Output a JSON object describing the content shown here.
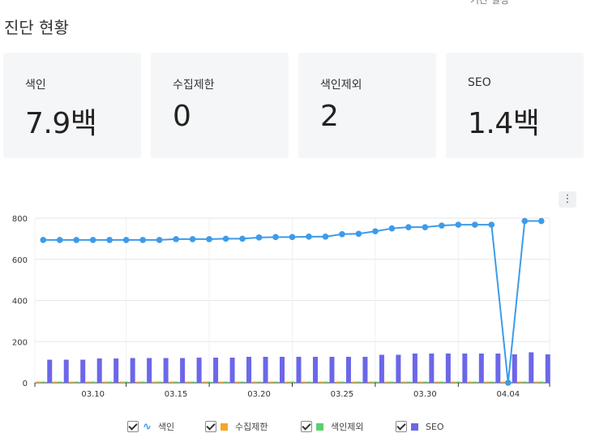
{
  "top_cut_text": "기간 설정",
  "section_title": "진단 현황",
  "cards": [
    {
      "label": "색인",
      "value": "7.9백"
    },
    {
      "label": "수집제한",
      "value": "0"
    },
    {
      "label": "색인제외",
      "value": "2"
    },
    {
      "label": "SEO",
      "value": "1.4백"
    }
  ],
  "menu_icon": "⋮",
  "chart_data": {
    "type": "bar",
    "title": "",
    "xlabel": "",
    "ylabel": "",
    "ylim": [
      0,
      800
    ],
    "y_ticks": [
      0,
      200,
      400,
      600,
      800
    ],
    "x_tick_labels": [
      "03.10",
      "03.15",
      "03.20",
      "03.25",
      "03.30",
      "04.04"
    ],
    "x": [
      "03.07",
      "03.08",
      "03.09",
      "03.10",
      "03.11",
      "03.12",
      "03.13",
      "03.14",
      "03.15",
      "03.16",
      "03.17",
      "03.18",
      "03.19",
      "03.20",
      "03.21",
      "03.22",
      "03.23",
      "03.24",
      "03.25",
      "03.26",
      "03.27",
      "03.28",
      "03.29",
      "03.30",
      "03.31",
      "04.01",
      "04.02",
      "04.03",
      "04.04",
      "04.05",
      "04.06"
    ],
    "grid": true,
    "legend_position": "bottom",
    "series": [
      {
        "name": "색인",
        "type": "line",
        "color": "#3d9be9",
        "values": [
          694,
          694,
          694,
          694,
          694,
          694,
          694,
          694,
          698,
          698,
          698,
          700,
          700,
          706,
          708,
          708,
          710,
          710,
          722,
          724,
          736,
          750,
          756,
          756,
          764,
          768,
          768,
          768,
          0,
          786,
          786
        ]
      },
      {
        "name": "수집제한",
        "type": "bar",
        "color": "#f5a623",
        "values": [
          0,
          0,
          0,
          0,
          0,
          0,
          0,
          0,
          0,
          0,
          0,
          0,
          0,
          0,
          0,
          0,
          0,
          0,
          0,
          0,
          0,
          0,
          0,
          0,
          0,
          0,
          0,
          0,
          0,
          0,
          0
        ]
      },
      {
        "name": "색인제외",
        "type": "bar",
        "color": "#5ccf6f",
        "values": [
          2,
          2,
          2,
          2,
          2,
          2,
          2,
          2,
          2,
          2,
          2,
          2,
          2,
          2,
          2,
          2,
          2,
          2,
          2,
          2,
          2,
          2,
          2,
          2,
          2,
          2,
          2,
          2,
          2,
          2,
          2
        ]
      },
      {
        "name": "SEO",
        "type": "bar",
        "color": "#6b67e8",
        "values": [
          112,
          112,
          112,
          118,
          118,
          120,
          120,
          120,
          120,
          122,
          122,
          122,
          126,
          126,
          126,
          126,
          126,
          126,
          126,
          126,
          136,
          136,
          142,
          142,
          142,
          142,
          142,
          142,
          138,
          148,
          138
        ]
      }
    ]
  },
  "legend": [
    {
      "label": "색인",
      "kind": "line",
      "color": "#3d9be9",
      "symbol": "∿"
    },
    {
      "label": "수집제한",
      "kind": "bar",
      "color": "#f5a623"
    },
    {
      "label": "색인제외",
      "kind": "bar",
      "color": "#5ccf6f"
    },
    {
      "label": "SEO",
      "kind": "bar",
      "color": "#6b67e8"
    }
  ]
}
